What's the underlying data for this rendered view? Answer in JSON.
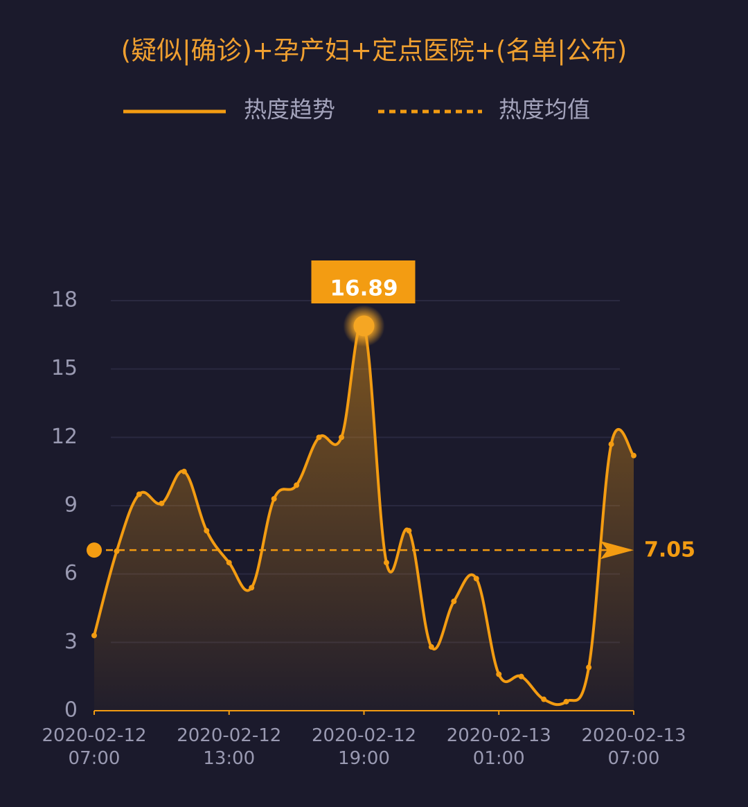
{
  "chart_data": {
    "type": "line",
    "title": "(疑似|确诊)+孕产妇+定点医院+(名单|公布)",
    "x": [
      "2020-02-12 07:00",
      "2020-02-12 08:00",
      "2020-02-12 09:00",
      "2020-02-12 10:00",
      "2020-02-12 11:00",
      "2020-02-12 12:00",
      "2020-02-12 13:00",
      "2020-02-12 14:00",
      "2020-02-12 15:00",
      "2020-02-12 16:00",
      "2020-02-12 17:00",
      "2020-02-12 18:00",
      "2020-02-12 19:00",
      "2020-02-12 20:00",
      "2020-02-12 21:00",
      "2020-02-12 22:00",
      "2020-02-12 23:00",
      "2020-02-13 00:00",
      "2020-02-13 01:00",
      "2020-02-13 02:00",
      "2020-02-13 03:00",
      "2020-02-13 04:00",
      "2020-02-13 05:00",
      "2020-02-13 06:00",
      "2020-02-13 07:00"
    ],
    "xticks": [
      "2020-02-12 07:00",
      "2020-02-12 13:00",
      "2020-02-12 19:00",
      "2020-02-13 01:00",
      "2020-02-13 07:00"
    ],
    "series": [
      {
        "name": "热度趋势",
        "color": "#f39c12",
        "values": [
          3.3,
          7.0,
          9.5,
          9.1,
          10.5,
          7.9,
          6.5,
          5.4,
          9.3,
          9.9,
          12.0,
          12.0,
          16.89,
          6.5,
          7.9,
          2.8,
          4.8,
          5.8,
          1.6,
          1.5,
          0.5,
          0.4,
          1.9,
          11.7,
          11.2
        ]
      }
    ],
    "mean": {
      "name": "热度均值",
      "value": 7.05,
      "color": "#f39c12"
    },
    "ylim": [
      0,
      18
    ],
    "yticks": [
      0,
      3,
      6,
      9,
      12,
      15,
      18
    ],
    "grid": true
  }
}
